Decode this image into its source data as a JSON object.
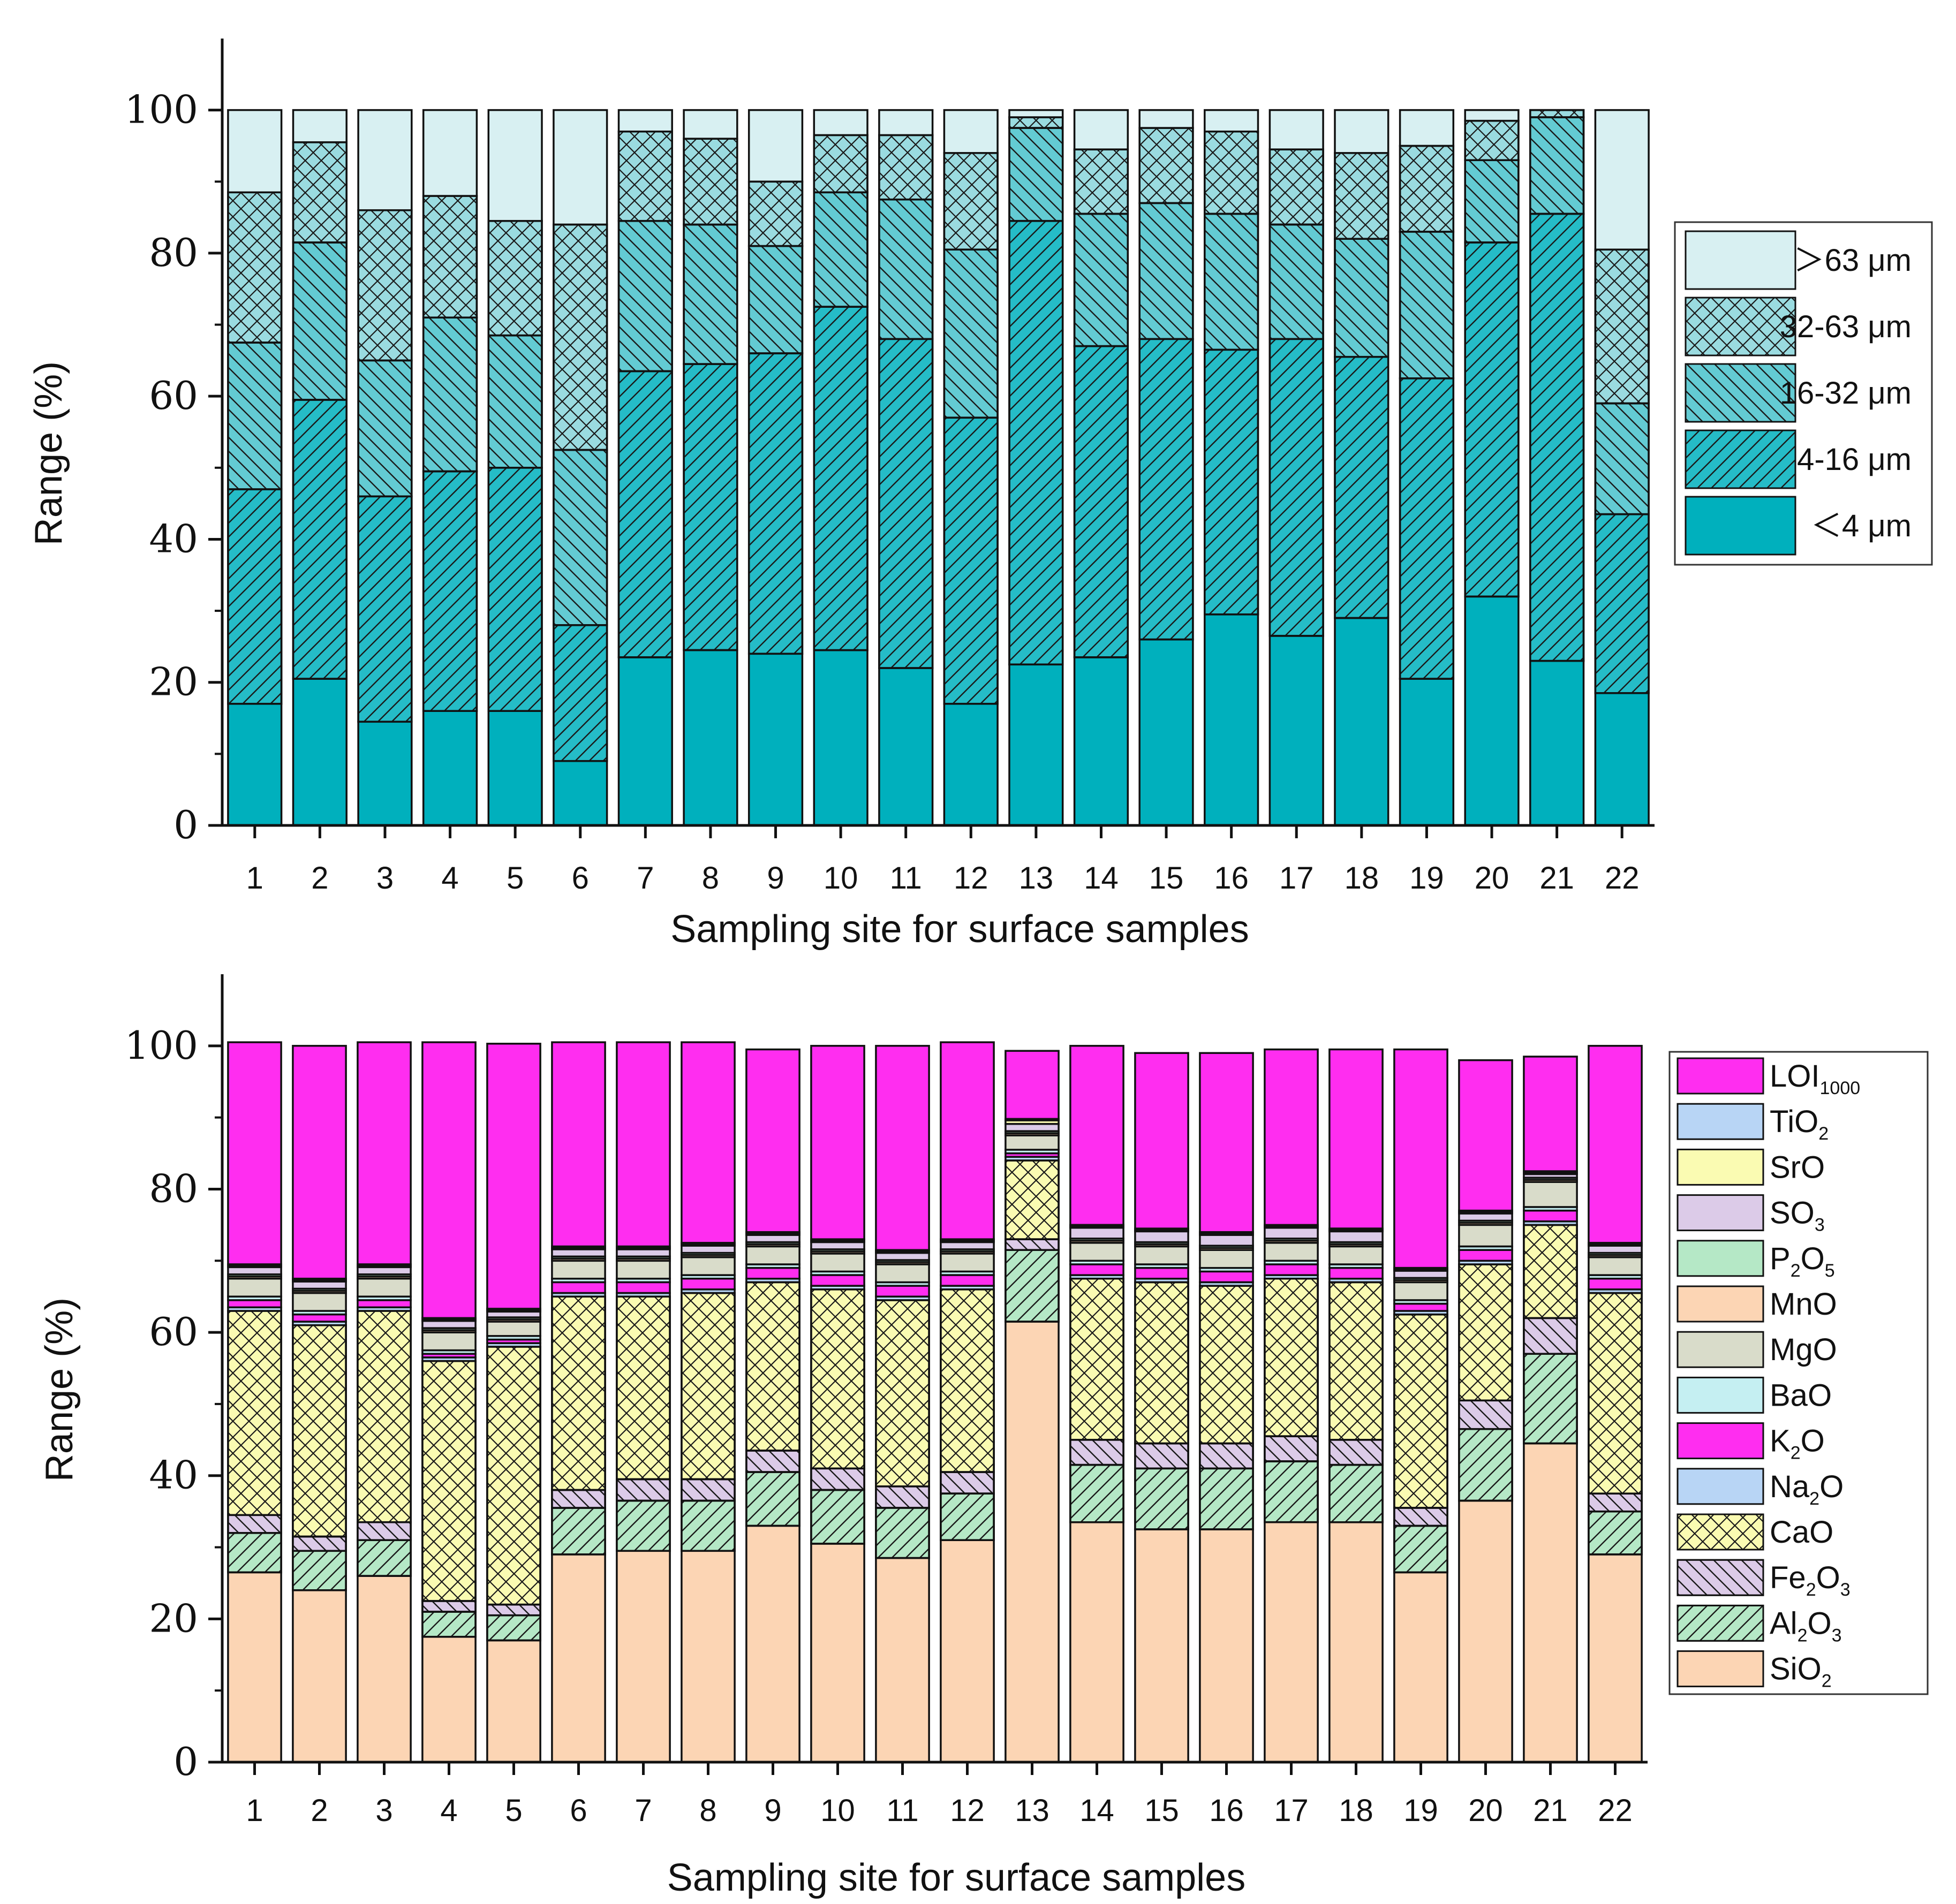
{
  "chart_data": [
    {
      "type": "bar",
      "stacked": true,
      "title": "",
      "xlabel": "Sampling site for surface samples",
      "ylabel": "Range (%)",
      "ylim": [
        0,
        110
      ],
      "yticks": [
        0,
        20,
        40,
        60,
        80,
        100
      ],
      "categories": [
        "1",
        "2",
        "3",
        "4",
        "5",
        "6",
        "7",
        "8",
        "9",
        "10",
        "11",
        "12",
        "13",
        "14",
        "15",
        "16",
        "17",
        "18",
        "19",
        "20",
        "21",
        "22"
      ],
      "legend_position": "right",
      "series": [
        {
          "name": "＜4 μm",
          "label_parts": [
            [
              "＜4 μm",
              ""
            ]
          ],
          "color": "#00b0bd",
          "pattern": "none",
          "values": [
            17,
            20.5,
            14.5,
            16,
            16,
            9,
            23.5,
            24.5,
            24,
            24.5,
            22,
            17,
            22.5,
            23.5,
            26,
            29.5,
            26.5,
            29,
            20.5,
            32,
            23,
            18.5
          ]
        },
        {
          "name": "4-16 μm",
          "label_parts": [
            [
              "4-16 μm",
              ""
            ]
          ],
          "color": "#25bcc7",
          "pattern": "diag-right",
          "values": [
            30,
            39,
            31.5,
            33.5,
            34,
            19,
            40,
            40,
            42,
            48,
            46,
            40,
            62,
            43.5,
            42,
            37,
            41.5,
            36.5,
            42,
            49.5,
            62.5,
            25
          ]
        },
        {
          "name": "16-32 μm",
          "label_parts": [
            [
              "16-32 μm",
              ""
            ]
          ],
          "color": "#63cbd3",
          "pattern": "diag-left",
          "values": [
            20.5,
            22,
            19,
            21.5,
            18.5,
            24.5,
            21,
            19.5,
            15,
            16,
            19.5,
            23.5,
            13,
            18.5,
            19,
            19,
            16,
            16.5,
            20.5,
            11.5,
            13.5,
            15.5
          ]
        },
        {
          "name": "32-63 μm",
          "label_parts": [
            [
              "32-63 μm",
              ""
            ]
          ],
          "color": "#9adbe0",
          "pattern": "cross",
          "values": [
            21,
            14,
            21,
            17,
            16,
            31.5,
            12.5,
            12,
            9,
            8,
            9,
            13.5,
            1.5,
            9,
            10.5,
            11.5,
            10.5,
            12,
            12,
            5.5,
            1,
            21.5
          ]
        },
        {
          "name": "＞63 μm",
          "label_parts": [
            [
              "＞63 μm",
              ""
            ]
          ],
          "color": "#d8f0f2",
          "pattern": "none",
          "values": [
            11.5,
            4.5,
            14,
            12,
            15.5,
            16,
            3,
            4,
            10,
            3.5,
            3.5,
            6,
            1,
            5.5,
            2.5,
            3,
            5.5,
            6,
            5,
            1.5,
            0,
            19.5
          ]
        }
      ]
    },
    {
      "type": "bar",
      "stacked": true,
      "title": "",
      "xlabel": "Sampling site for surface samples",
      "ylabel": "Range (%)",
      "ylim": [
        0,
        110
      ],
      "yticks": [
        0,
        20,
        40,
        60,
        80,
        100
      ],
      "categories": [
        "1",
        "2",
        "3",
        "4",
        "5",
        "6",
        "7",
        "8",
        "9",
        "10",
        "11",
        "12",
        "13",
        "14",
        "15",
        "16",
        "17",
        "18",
        "19",
        "20",
        "21",
        "22"
      ],
      "legend_position": "right",
      "series": [
        {
          "name": "SiO2",
          "label_parts": [
            [
              "SiO",
              ""
            ],
            [
              "2",
              "sub"
            ]
          ],
          "color": "#fcd5b4",
          "pattern": "none",
          "values": [
            26.5,
            24,
            26,
            17.5,
            17,
            29,
            29.5,
            29.5,
            33,
            30.5,
            28.5,
            31,
            61.5,
            33.5,
            32.5,
            32.5,
            33.5,
            33.5,
            26.5,
            36.5,
            44.5,
            29
          ]
        },
        {
          "name": "Al2O3",
          "label_parts": [
            [
              "Al",
              ""
            ],
            [
              "2",
              "sub"
            ],
            [
              "O",
              ""
            ],
            [
              "3",
              "sub"
            ]
          ],
          "color": "#b5e8c6",
          "pattern": "diag-right",
          "values": [
            5.5,
            5.5,
            5,
            3.5,
            3.5,
            6.5,
            7,
            7,
            7.5,
            7.5,
            7,
            6.5,
            10,
            8,
            8.5,
            8.5,
            8.5,
            8,
            6.5,
            10,
            12.5,
            6
          ]
        },
        {
          "name": "Fe2O3",
          "label_parts": [
            [
              "Fe",
              ""
            ],
            [
              "2",
              "sub"
            ],
            [
              "O",
              ""
            ],
            [
              "3",
              "sub"
            ]
          ],
          "color": "#dccbe8",
          "pattern": "diag-left",
          "values": [
            2.5,
            2,
            2.5,
            1.5,
            1.5,
            2.5,
            3,
            3,
            3,
            3,
            3,
            3,
            1.5,
            3.5,
            3.5,
            3.5,
            3.5,
            3.5,
            2.5,
            4,
            5,
            2.5
          ]
        },
        {
          "name": "CaO",
          "label_parts": [
            [
              "CaO",
              ""
            ]
          ],
          "color": "#fafbb2",
          "pattern": "cross",
          "values": [
            28.5,
            29.5,
            29.5,
            33.5,
            36,
            27,
            25.5,
            26,
            23.5,
            25,
            26,
            25.5,
            11,
            22.5,
            22.5,
            22,
            22,
            22,
            27,
            19,
            13,
            28
          ]
        },
        {
          "name": "Na2O",
          "label_parts": [
            [
              "Na",
              ""
            ],
            [
              "2",
              "sub"
            ],
            [
              "O",
              ""
            ]
          ],
          "color": "#b8d5f5",
          "pattern": "none",
          "values": [
            0.5,
            0.5,
            0.5,
            0.5,
            0.5,
            0.5,
            0.5,
            0.5,
            0.5,
            0.5,
            0.5,
            0.5,
            0.5,
            0.5,
            0.5,
            0.5,
            0.5,
            0.5,
            0.5,
            0.5,
            0.5,
            0.5
          ]
        },
        {
          "name": "K2O",
          "label_parts": [
            [
              "K",
              ""
            ],
            [
              "2",
              "sub"
            ],
            [
              "O",
              ""
            ]
          ],
          "color": "#ff2df0",
          "pattern": "none",
          "values": [
            1,
            1,
            1,
            0.5,
            0.5,
            1.5,
            1.5,
            1.5,
            1.5,
            1.5,
            1.5,
            1.5,
            0.5,
            1.5,
            1.5,
            1.5,
            1.5,
            1.5,
            1,
            1.5,
            1.5,
            1.5
          ]
        },
        {
          "name": "BaO",
          "label_parts": [
            [
              "BaO",
              ""
            ]
          ],
          "color": "#c5eff2",
          "pattern": "none",
          "values": [
            0.5,
            0.5,
            0.5,
            0.5,
            0.5,
            0.5,
            0.5,
            0.5,
            0.5,
            0.5,
            0.5,
            0.5,
            0.5,
            0.5,
            0.5,
            0.5,
            0.5,
            0.5,
            0.5,
            0.5,
            0.5,
            0.5
          ]
        },
        {
          "name": "MgO",
          "label_parts": [
            [
              "MgO",
              ""
            ]
          ],
          "color": "#d9dcca",
          "pattern": "none",
          "values": [
            2.5,
            2.5,
            2.5,
            2.5,
            2,
            2.5,
            2.5,
            2.5,
            2.5,
            2.5,
            2.5,
            2.5,
            2,
            2.5,
            2.5,
            2.5,
            2.5,
            2.5,
            2.5,
            3,
            3.5,
            2.5
          ]
        },
        {
          "name": "MnO",
          "label_parts": [
            [
              "MnO",
              ""
            ]
          ],
          "color": "#fcd5b4",
          "pattern": "none",
          "values": [
            0.3,
            0.3,
            0.3,
            0.3,
            0.3,
            0.3,
            0.3,
            0.3,
            0.3,
            0.3,
            0.3,
            0.3,
            0.3,
            0.3,
            0.3,
            0.3,
            0.3,
            0.3,
            0.3,
            0.3,
            0.3,
            0.3
          ]
        },
        {
          "name": "P2O5",
          "label_parts": [
            [
              "P",
              ""
            ],
            [
              "2",
              "sub"
            ],
            [
              "O",
              ""
            ],
            [
              "5",
              "sub"
            ]
          ],
          "color": "#b5e8c6",
          "pattern": "none",
          "values": [
            0.3,
            0.3,
            0.3,
            0.3,
            0.3,
            0.3,
            0.3,
            0.3,
            0.3,
            0.3,
            0.3,
            0.3,
            0.3,
            0.3,
            0.3,
            0.3,
            0.3,
            0.3,
            0.3,
            0.3,
            0.3,
            0.3
          ]
        },
        {
          "name": "SO3",
          "label_parts": [
            [
              "SO",
              ""
            ],
            [
              "3",
              "sub"
            ]
          ],
          "color": "#dccbe8",
          "pattern": "none",
          "values": [
            1,
            1,
            1,
            1,
            0.8,
            1,
            1,
            1,
            1,
            1,
            1,
            1,
            1,
            1.5,
            1.5,
            1.5,
            1.5,
            1.5,
            1,
            1,
            0.5,
            1
          ]
        },
        {
          "name": "SrO",
          "label_parts": [
            [
              "SrO",
              ""
            ]
          ],
          "color": "#fafbb2",
          "pattern": "none",
          "values": [
            0.2,
            0.2,
            0.2,
            0.2,
            0.2,
            0.2,
            0.2,
            0.2,
            0.2,
            0.2,
            0.2,
            0.2,
            0.5,
            0.2,
            0.2,
            0.2,
            0.2,
            0.2,
            0.2,
            0.2,
            0.2,
            0.2
          ]
        },
        {
          "name": "TiO2",
          "label_parts": [
            [
              "TiO",
              ""
            ],
            [
              "2",
              "sub"
            ]
          ],
          "color": "#b8d5f5",
          "pattern": "none",
          "values": [
            0.2,
            0.2,
            0.2,
            0.2,
            0.2,
            0.2,
            0.2,
            0.2,
            0.2,
            0.2,
            0.2,
            0.2,
            0.2,
            0.2,
            0.2,
            0.2,
            0.2,
            0.2,
            0.2,
            0.2,
            0.2,
            0.2
          ]
        },
        {
          "name": "LOI1000",
          "label_parts": [
            [
              "LOI",
              ""
            ],
            [
              "1000",
              "sub"
            ]
          ],
          "color": "#ff2df0",
          "pattern": "none",
          "values": [
            31,
            32.5,
            31,
            38.5,
            37,
            28.5,
            28.5,
            28,
            25.5,
            27,
            28.5,
            27.5,
            9.5,
            25,
            24.5,
            25,
            24.5,
            25,
            30.5,
            21,
            16,
            27.5
          ]
        }
      ]
    }
  ]
}
